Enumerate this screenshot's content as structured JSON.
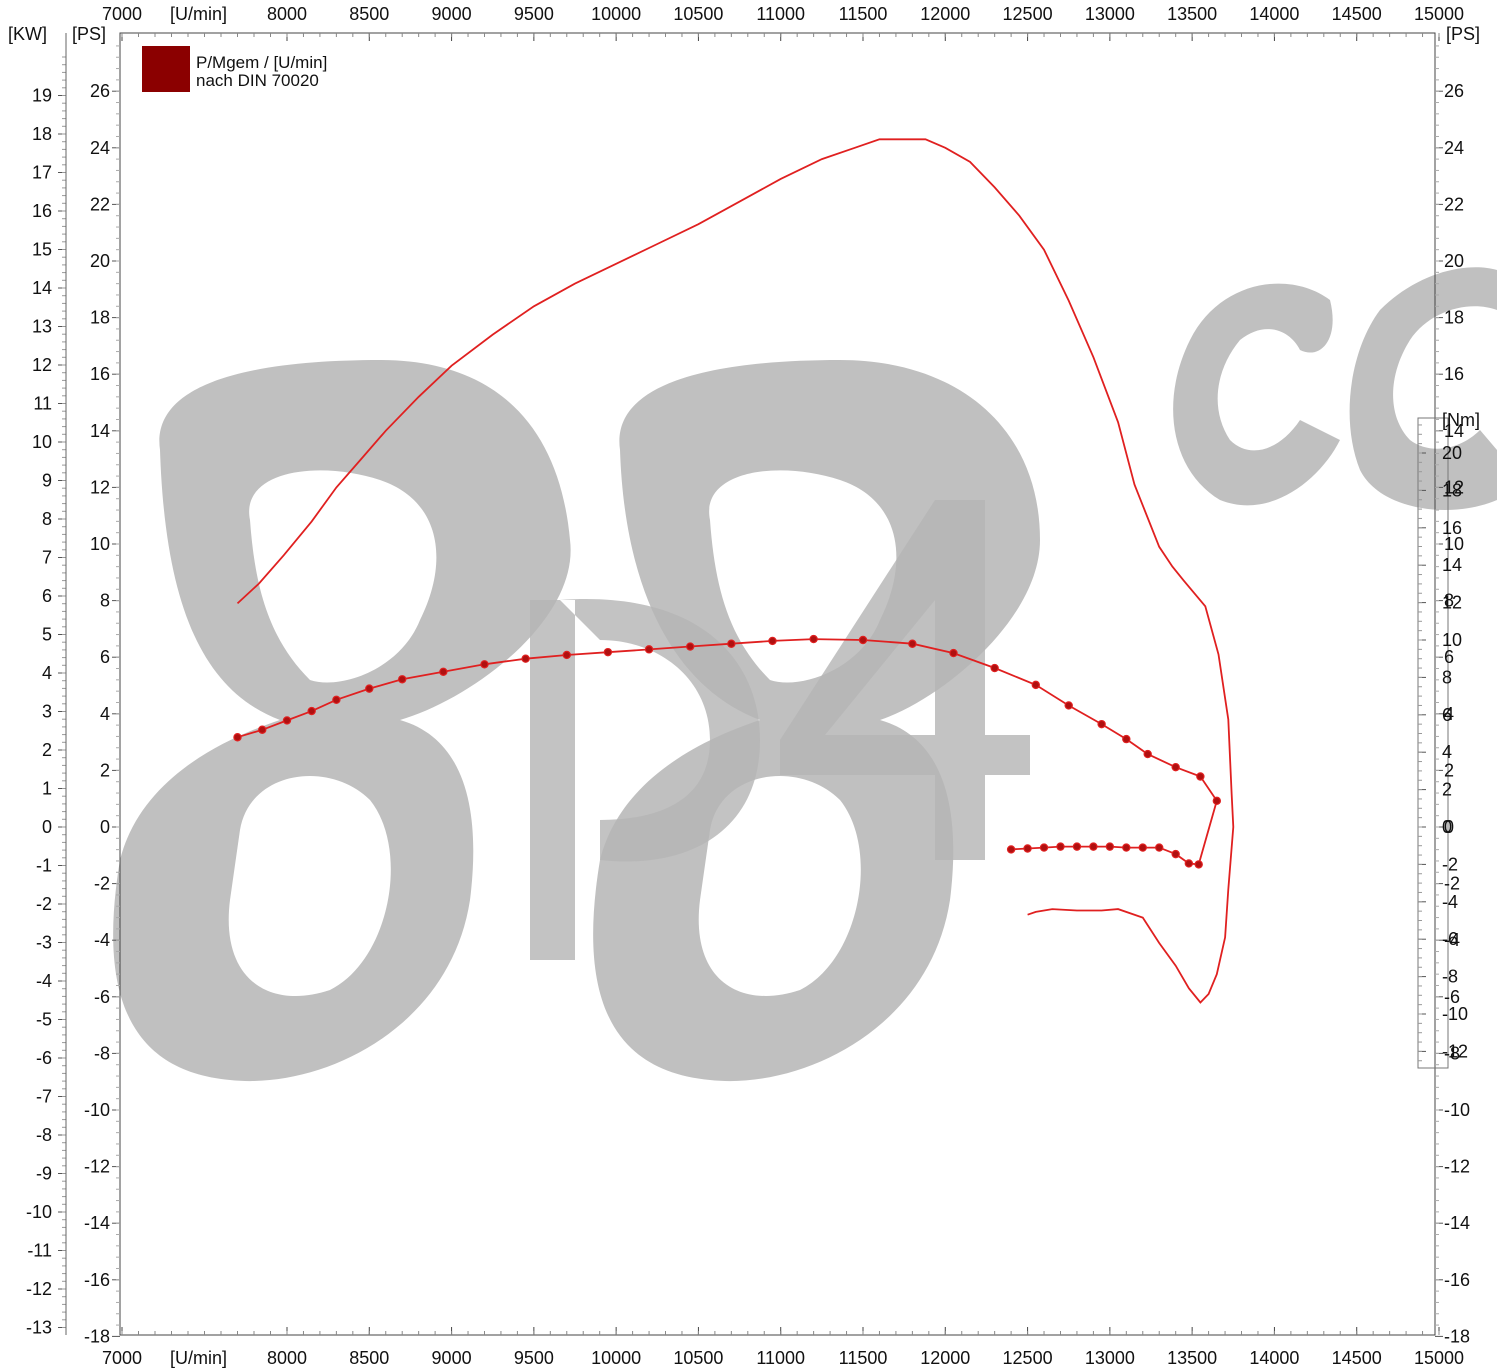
{
  "chart_data": {
    "type": "line",
    "x_axis": {
      "unit_label": "[U/min]",
      "range": [
        7000,
        15000
      ],
      "ticks": [
        7000,
        8000,
        8500,
        9000,
        9500,
        10000,
        10500,
        11000,
        11500,
        12000,
        12500,
        13000,
        13500,
        14000,
        14500,
        15000
      ]
    },
    "left_axis_kw": {
      "unit_label": "[KW]",
      "ticks": [
        19,
        18,
        17,
        16,
        15,
        14,
        13,
        12,
        11,
        10,
        9,
        8,
        7,
        6,
        5,
        4,
        3,
        2,
        1,
        0,
        -1,
        -2,
        -3,
        -4,
        -5,
        -6,
        -7,
        -8,
        -9,
        -10,
        -11,
        -12,
        -13
      ]
    },
    "ps_axis": {
      "unit_label": "[PS]",
      "range": [
        -18,
        28.2
      ],
      "ticks": [
        26,
        24,
        22,
        20,
        18,
        16,
        14,
        12,
        10,
        8,
        6,
        4,
        2,
        0,
        -2,
        -4,
        -6,
        -8,
        -10,
        -12,
        -14,
        -16,
        -18
      ]
    },
    "right_axis_nm": {
      "unit_label": "[Nm]",
      "ticks": [
        20,
        18,
        16,
        14,
        12,
        10,
        8,
        6,
        4,
        2,
        0,
        -2,
        -4,
        -6,
        -8,
        -10,
        -12
      ]
    },
    "legend": {
      "line1": "P/Mgem / [U/min]",
      "line2": "nach DIN 70020",
      "position": "top-left",
      "swatch_color": "#8b0000"
    },
    "watermark": "88 cc p4",
    "grid": false,
    "series": [
      {
        "kind": "power_ps",
        "color": "#e02020",
        "markers": false,
        "points": [
          [
            7700,
            7.9
          ],
          [
            7830,
            8.6
          ],
          [
            7980,
            9.6
          ],
          [
            8150,
            10.8
          ],
          [
            8300,
            12.0
          ],
          [
            8450,
            13.0
          ],
          [
            8600,
            14.0
          ],
          [
            8800,
            15.2
          ],
          [
            9000,
            16.3
          ],
          [
            9250,
            17.4
          ],
          [
            9500,
            18.4
          ],
          [
            9750,
            19.2
          ],
          [
            10000,
            19.9
          ],
          [
            10250,
            20.6
          ],
          [
            10500,
            21.3
          ],
          [
            10750,
            22.1
          ],
          [
            11000,
            22.9
          ],
          [
            11250,
            23.6
          ],
          [
            11450,
            24.0
          ],
          [
            11600,
            24.3
          ],
          [
            11750,
            24.3
          ],
          [
            11880,
            24.3
          ],
          [
            12000,
            24.0
          ],
          [
            12150,
            23.5
          ],
          [
            12300,
            22.6
          ],
          [
            12450,
            21.6
          ],
          [
            12600,
            20.4
          ],
          [
            12750,
            18.6
          ],
          [
            12900,
            16.6
          ],
          [
            13050,
            14.3
          ],
          [
            13150,
            12.1
          ],
          [
            13300,
            9.9
          ],
          [
            13380,
            9.2
          ],
          [
            13450,
            8.7
          ],
          [
            13580,
            7.8
          ],
          [
            13660,
            6.1
          ],
          [
            13720,
            3.8
          ],
          [
            13740,
            1.2
          ],
          [
            13750,
            0.0
          ],
          [
            13720,
            -2.2
          ],
          [
            13700,
            -3.9
          ],
          [
            13650,
            -5.2
          ],
          [
            13600,
            -5.9
          ],
          [
            13550,
            -6.2
          ],
          [
            13480,
            -5.7
          ],
          [
            13400,
            -4.9
          ],
          [
            13300,
            -4.1
          ],
          [
            13200,
            -3.2
          ],
          [
            13050,
            -2.9
          ],
          [
            12950,
            -2.95
          ],
          [
            12800,
            -2.95
          ],
          [
            12650,
            -2.9
          ],
          [
            12550,
            -3.0
          ],
          [
            12500,
            -3.1
          ]
        ]
      },
      {
        "kind": "torque_nm",
        "color": "#e02020",
        "marker_color": "#b01010",
        "markers": true,
        "points": [
          [
            7700,
            4.8
          ],
          [
            7850,
            5.2
          ],
          [
            8000,
            5.7
          ],
          [
            8150,
            6.2
          ],
          [
            8300,
            6.8
          ],
          [
            8500,
            7.4
          ],
          [
            8700,
            7.9
          ],
          [
            8950,
            8.3
          ],
          [
            9200,
            8.7
          ],
          [
            9450,
            9.0
          ],
          [
            9700,
            9.2
          ],
          [
            9950,
            9.35
          ],
          [
            10200,
            9.5
          ],
          [
            10450,
            9.65
          ],
          [
            10700,
            9.8
          ],
          [
            10950,
            9.95
          ],
          [
            11200,
            10.05
          ],
          [
            11500,
            10.0
          ],
          [
            11800,
            9.8
          ],
          [
            12050,
            9.3
          ],
          [
            12300,
            8.5
          ],
          [
            12550,
            7.6
          ],
          [
            12750,
            6.5
          ],
          [
            12950,
            5.5
          ],
          [
            13100,
            4.7
          ],
          [
            13230,
            3.9
          ],
          [
            13400,
            3.2
          ],
          [
            13550,
            2.7
          ],
          [
            13650,
            1.4
          ],
          [
            13540,
            -2.0
          ],
          [
            13480,
            -1.95
          ],
          [
            13400,
            -1.45
          ],
          [
            13300,
            -1.1
          ],
          [
            13200,
            -1.1
          ],
          [
            13100,
            -1.1
          ],
          [
            13000,
            -1.05
          ],
          [
            12900,
            -1.05
          ],
          [
            12800,
            -1.05
          ],
          [
            12700,
            -1.05
          ],
          [
            12600,
            -1.1
          ],
          [
            12500,
            -1.15
          ],
          [
            12400,
            -1.2
          ]
        ]
      }
    ]
  }
}
